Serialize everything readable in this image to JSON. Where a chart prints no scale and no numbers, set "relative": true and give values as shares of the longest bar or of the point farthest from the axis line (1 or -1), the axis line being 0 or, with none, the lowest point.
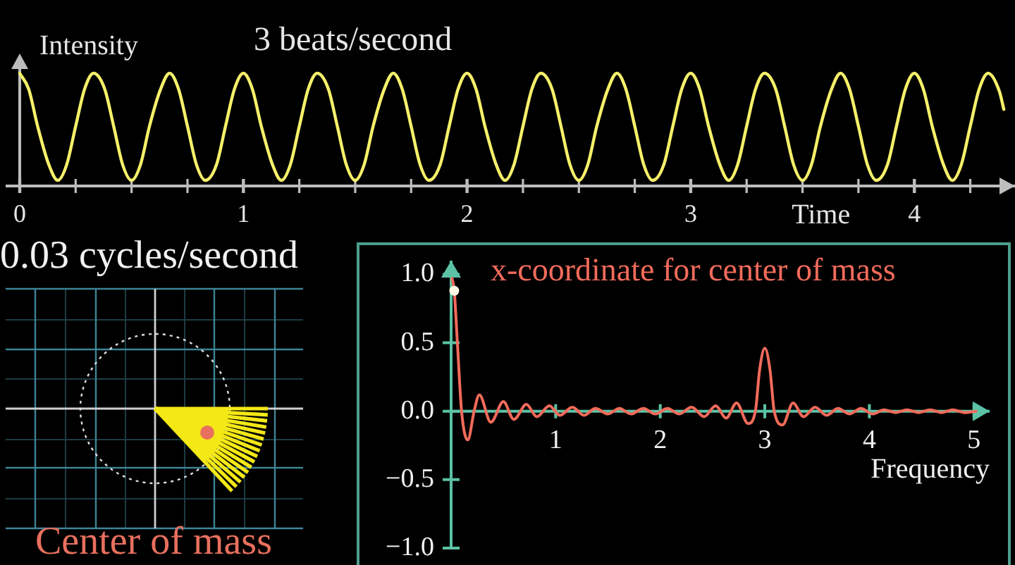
{
  "chart_data": [
    {
      "type": "line",
      "title": "3 beats/second",
      "xlabel": "Time",
      "ylabel": "Intensity",
      "relative": true,
      "x": [
        0,
        0.04,
        0.08,
        0.13,
        0.17,
        0.21,
        0.25,
        0.29,
        0.33,
        0.38,
        0.42,
        0.46,
        0.5,
        0.54,
        0.58,
        0.63,
        0.67,
        0.71,
        0.75,
        0.79,
        0.83,
        0.88,
        0.92,
        0.96,
        1,
        1.04,
        1.08,
        1.13,
        1.17,
        1.21,
        1.25,
        1.29,
        1.33,
        1.38,
        1.42,
        1.46,
        1.5,
        1.54,
        1.58,
        1.63,
        1.67,
        1.71,
        1.75,
        1.79,
        1.83,
        1.88,
        1.92,
        1.96,
        2,
        2.04,
        2.08,
        2.13,
        2.17,
        2.21,
        2.25,
        2.29,
        2.33,
        2.38,
        2.42,
        2.46,
        2.5,
        2.54,
        2.58,
        2.63,
        2.67,
        2.71,
        2.75,
        2.79,
        2.83,
        2.88,
        2.92,
        2.96,
        3,
        3.04,
        3.08,
        3.13,
        3.17,
        3.21,
        3.25,
        3.29,
        3.33,
        3.38,
        3.42,
        3.46,
        3.5,
        3.54,
        3.58,
        3.63,
        3.67,
        3.71,
        3.75,
        3.79,
        3.83,
        3.88,
        3.92,
        3.96,
        4,
        4.04,
        4.08,
        4.13,
        4.17,
        4.21,
        4.25,
        4.29,
        4.33,
        4.38,
        4.4
      ],
      "series": [
        {
          "color": "#f6f06a",
          "values": [
            1,
            0.86,
            0.53,
            0.19,
            0.05,
            0.19,
            0.53,
            0.86,
            1,
            0.86,
            0.53,
            0.19,
            0.05,
            0.19,
            0.53,
            0.86,
            1,
            0.86,
            0.53,
            0.19,
            0.05,
            0.19,
            0.53,
            0.86,
            1,
            0.86,
            0.53,
            0.19,
            0.05,
            0.19,
            0.53,
            0.86,
            1,
            0.86,
            0.53,
            0.19,
            0.05,
            0.19,
            0.53,
            0.86,
            1,
            0.86,
            0.53,
            0.19,
            0.05,
            0.19,
            0.53,
            0.86,
            1,
            0.86,
            0.53,
            0.19,
            0.05,
            0.19,
            0.53,
            0.86,
            1,
            0.86,
            0.53,
            0.19,
            0.05,
            0.19,
            0.53,
            0.86,
            1,
            0.86,
            0.53,
            0.19,
            0.05,
            0.19,
            0.53,
            0.86,
            1,
            0.86,
            0.53,
            0.19,
            0.05,
            0.19,
            0.53,
            0.86,
            1,
            0.86,
            0.53,
            0.19,
            0.05,
            0.19,
            0.53,
            0.86,
            1,
            0.86,
            0.53,
            0.19,
            0.05,
            0.19,
            0.53,
            0.86,
            1,
            0.86,
            0.53,
            0.19,
            0.05,
            0.19,
            0.53,
            0.86,
            1,
            0.84,
            0.68
          ]
        }
      ],
      "xlim": [
        0,
        4.45
      ],
      "xticks": [
        0,
        {
          "value": 0.25,
          "label": null
        },
        {
          "value": 0.5,
          "label": null
        },
        {
          "value": 0.75,
          "label": null
        },
        1,
        {
          "value": 1.25,
          "label": null
        },
        {
          "value": 1.5,
          "label": null
        },
        {
          "value": 1.75,
          "label": null
        },
        2,
        {
          "value": 2.25,
          "label": null
        },
        {
          "value": 2.5,
          "label": null
        },
        {
          "value": 2.75,
          "label": null
        },
        3,
        {
          "value": 3.25,
          "label": null
        },
        {
          "value": 3.5,
          "label": null
        },
        {
          "value": 3.75,
          "label": null
        },
        4,
        {
          "value": 4.25,
          "label": null
        }
      ]
    },
    {
      "type": "other",
      "title": "0.03 cycles/second",
      "annotations": [
        "Center of mass"
      ]
    },
    {
      "type": "line",
      "title": "x-coordinate for center of mass",
      "xlabel": "Frequency",
      "x": [
        0.01,
        0.03,
        0.06,
        0.1,
        0.16,
        0.22,
        0.27,
        0.38,
        0.5,
        0.6,
        0.72,
        0.82,
        0.94,
        1.04,
        1.16,
        1.27,
        1.38,
        1.5,
        1.61,
        1.72,
        1.84,
        1.95,
        2.07,
        2.18,
        2.3,
        2.42,
        2.53,
        2.63,
        2.73,
        2.84,
        2.91,
        2.95,
        3,
        3.05,
        3.09,
        3.17,
        3.27,
        3.37,
        3.48,
        3.59,
        3.7,
        3.81,
        3.92,
        4.03,
        4.14,
        4.25,
        4.36,
        4.47,
        4.58,
        4.69,
        4.8,
        4.91,
        5.02
      ],
      "series": [
        {
          "color": "#f26b5b",
          "values": [
            0.97,
            0.88,
            0.5,
            0,
            -0.21,
            0,
            0.12,
            -0.08,
            0.07,
            -0.06,
            0.05,
            -0.04,
            0.04,
            -0.03,
            0.03,
            -0.03,
            0.02,
            -0.02,
            0.02,
            -0.02,
            0.02,
            -0.02,
            0.02,
            -0.02,
            0.03,
            -0.04,
            0.04,
            -0.05,
            0.06,
            -0.09,
            0,
            0.3,
            0.46,
            0.3,
            0,
            -0.1,
            0.06,
            -0.04,
            0.03,
            -0.03,
            0.02,
            -0.02,
            0.02,
            -0.02,
            0.01,
            -0.01,
            0.01,
            -0.01,
            0.01,
            -0.01,
            0.01,
            -0.01,
            0
          ]
        },
        {
          "type": "scatter",
          "color": "#fffbe6",
          "marker": "circle",
          "x": [
            0.03
          ],
          "values": [
            0.88
          ]
        }
      ],
      "xlim": [
        0,
        5.15
      ],
      "xticks": [
        1,
        2,
        3,
        4,
        5
      ],
      "ylim": [
        -1,
        1.1
      ],
      "yticks": [
        {
          "value": 1,
          "label": "1.0"
        },
        {
          "value": 0.5,
          "label": "0.5"
        },
        {
          "value": 0,
          "label": "0.0"
        },
        {
          "value": -0.5,
          "label": "−0.5"
        },
        {
          "value": -1,
          "label": "−1.0"
        }
      ]
    }
  ]
}
